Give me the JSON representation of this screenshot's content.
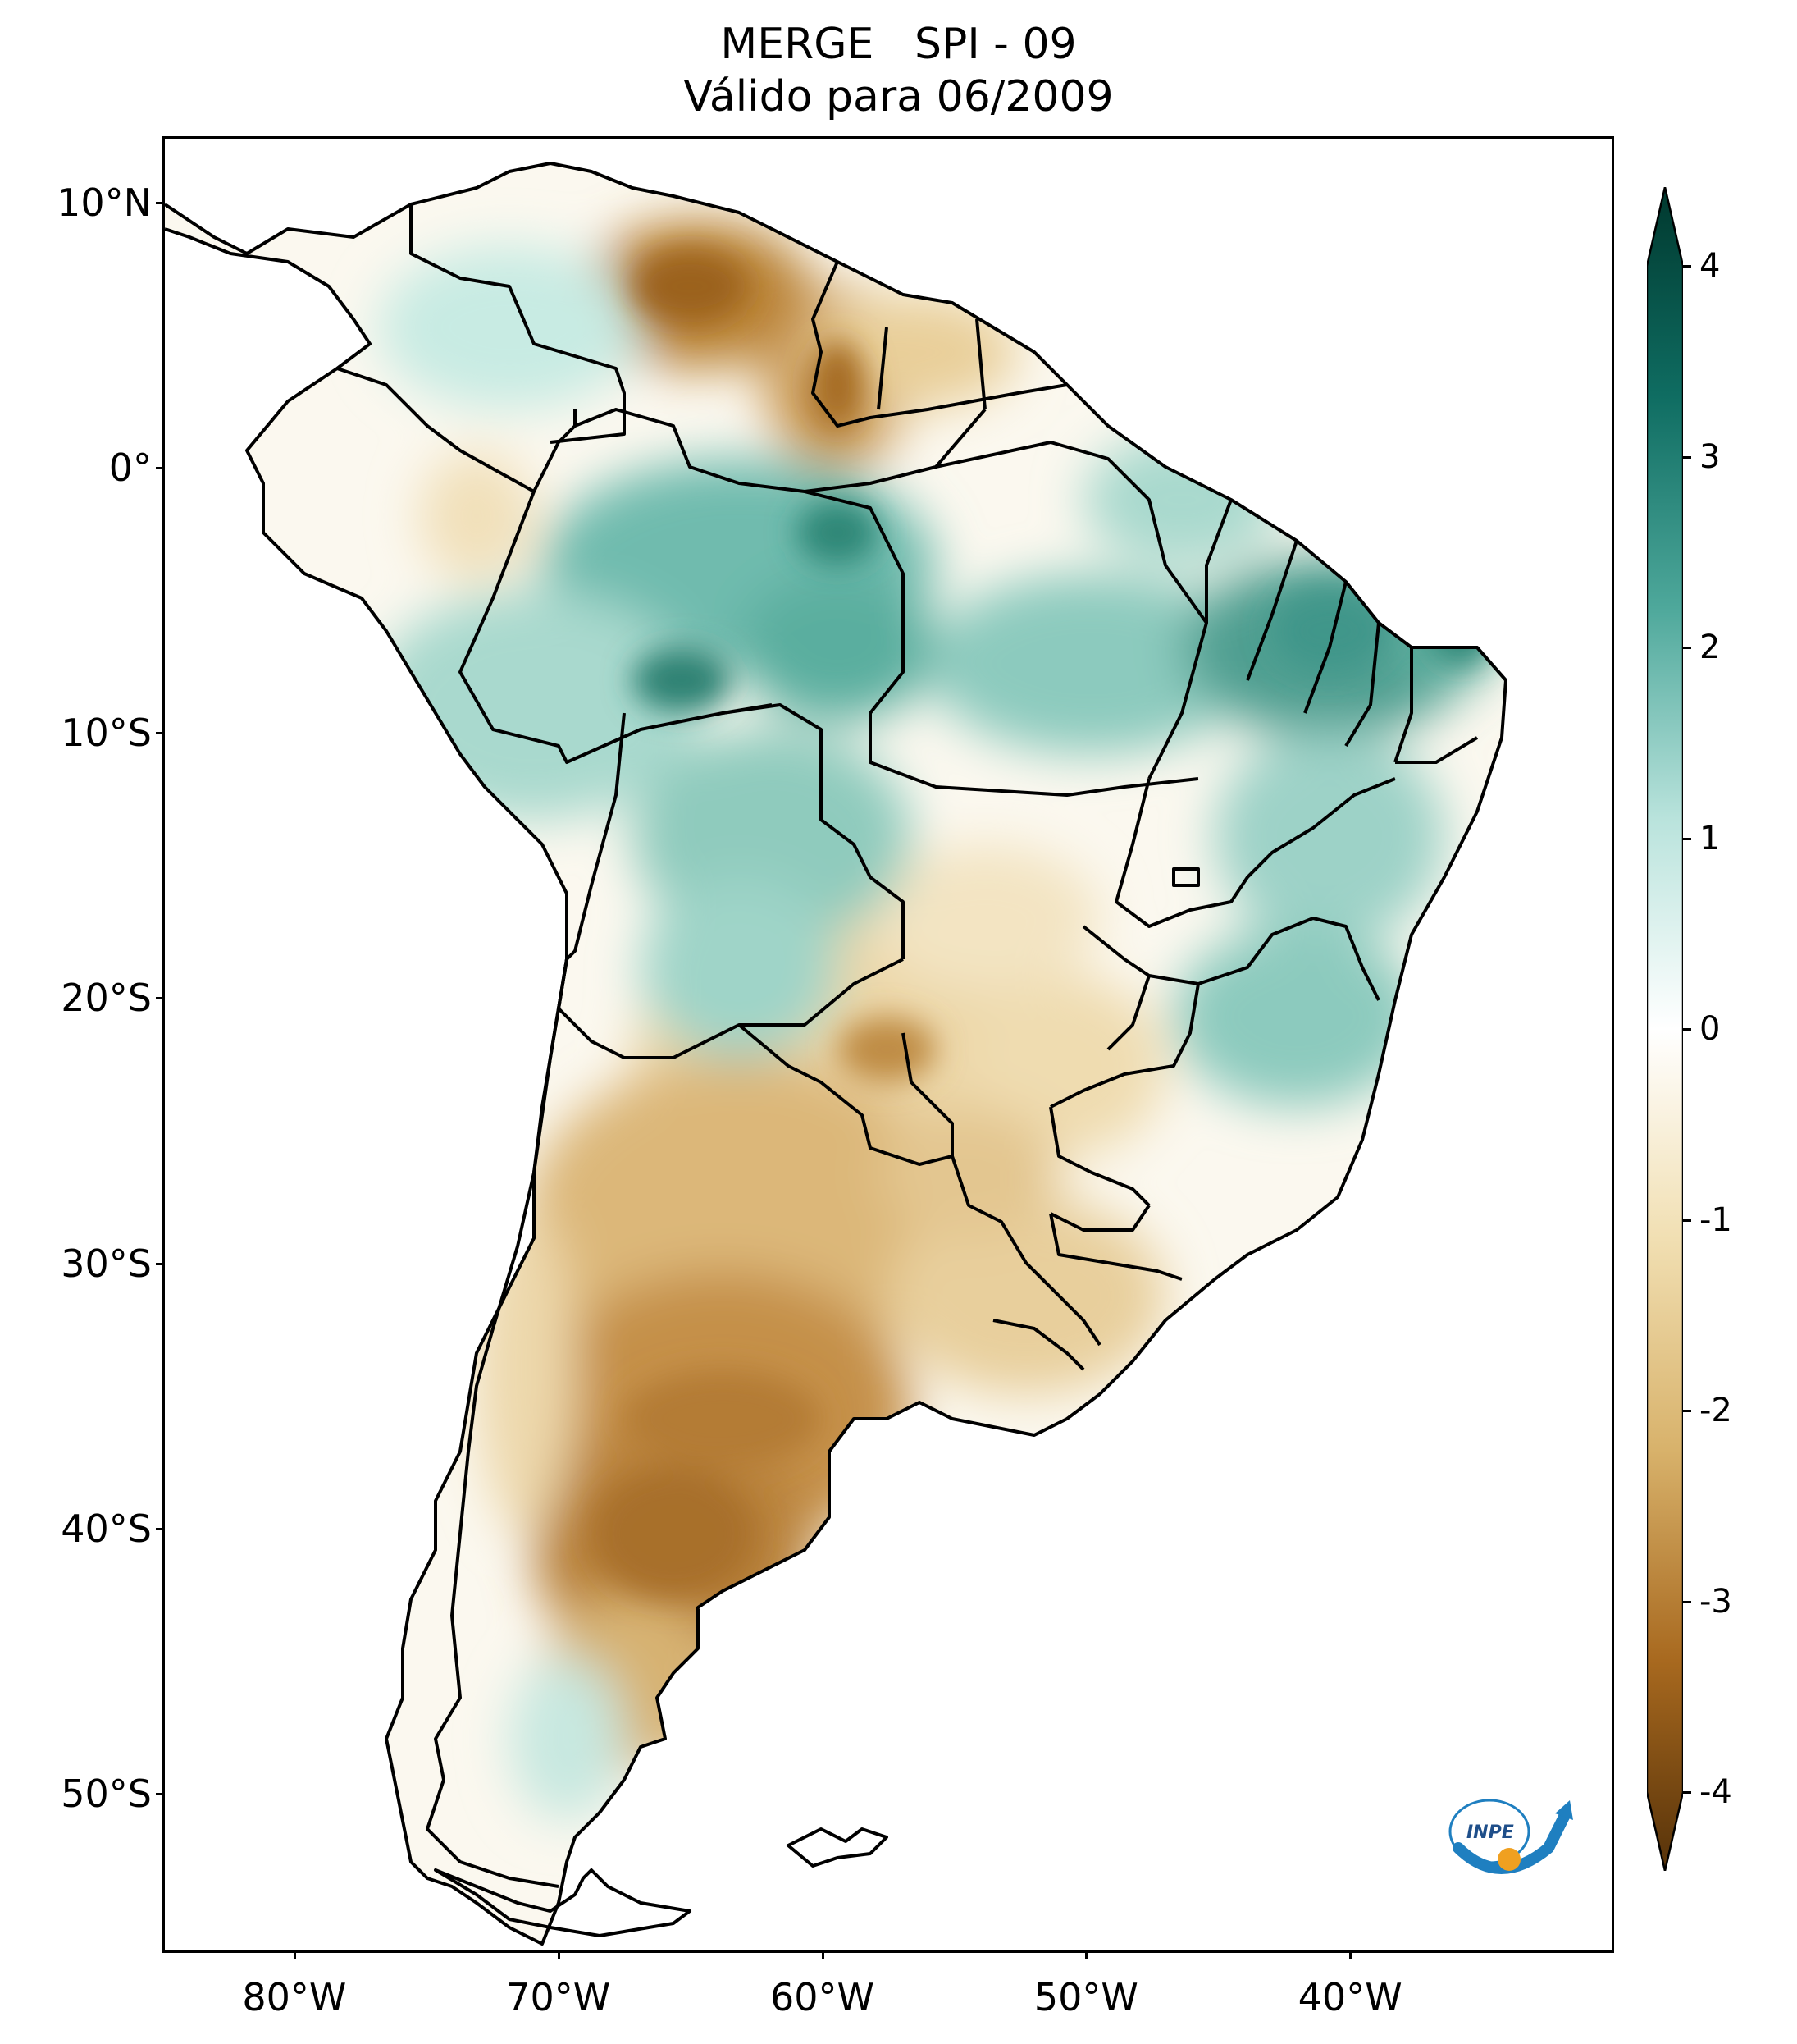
{
  "title": {
    "line1": "MERGE   SPI - 09",
    "line2": "Válido para 06/2009"
  },
  "map": {
    "region": "South America",
    "variable": "SPI - 09",
    "lon_range": [
      -85,
      -30
    ],
    "lat_range": [
      -56,
      12.5
    ],
    "lat_ticks": [
      {
        "label": "10°N",
        "lat": 10
      },
      {
        "label": "0°",
        "lat": 0
      },
      {
        "label": "10°S",
        "lat": -10
      },
      {
        "label": "20°S",
        "lat": -20
      },
      {
        "label": "30°S",
        "lat": -30
      },
      {
        "label": "40°S",
        "lat": -40
      },
      {
        "label": "50°S",
        "lat": -50
      }
    ],
    "lon_ticks": [
      {
        "label": "80°W",
        "lon": -80
      },
      {
        "label": "70°W",
        "lon": -70
      },
      {
        "label": "60°W",
        "lon": -60
      },
      {
        "label": "50°W",
        "lon": -50
      },
      {
        "label": "40°W",
        "lon": -40
      }
    ]
  },
  "colorbar": {
    "min": -4,
    "max": 4,
    "ticks": [
      {
        "label": "4",
        "value": 4
      },
      {
        "label": "3",
        "value": 3
      },
      {
        "label": "2",
        "value": 2
      },
      {
        "label": "1",
        "value": 1
      },
      {
        "label": "0",
        "value": 0
      },
      {
        "label": "-1",
        "value": -1
      },
      {
        "label": "-2",
        "value": -2
      },
      {
        "label": "-3",
        "value": -3
      },
      {
        "label": "-4",
        "value": -4
      }
    ],
    "colors": {
      "wet_extreme": "#00382e",
      "wet_strong": "#0f6d62",
      "wet_moderate": "#4ea89b",
      "wet_light": "#b9e3dc",
      "neutral": "#ffffff",
      "dry_light": "#f1dfb2",
      "dry_moderate": "#d8b26b",
      "dry_strong": "#a8691f",
      "dry_extreme": "#563209"
    }
  },
  "logo": {
    "text": "INPE"
  }
}
